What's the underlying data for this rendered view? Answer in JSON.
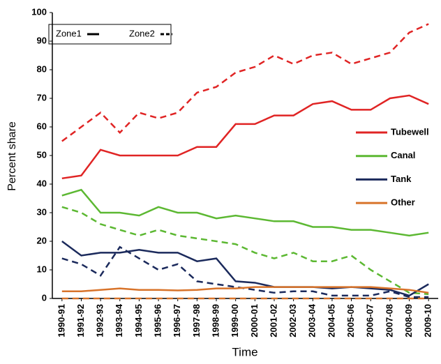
{
  "chart_data": {
    "type": "line",
    "x_label": "Time",
    "y_label": "Percent share",
    "categories": [
      "1990-91",
      "1991-92",
      "1992-93",
      "1993-94",
      "1994-95",
      "1995-96",
      "1996-97",
      "1997-98",
      "1998-99",
      "1999-00",
      "2000-01",
      "2001-02",
      "2002-03",
      "2003-04",
      "2004-05",
      "2005-06",
      "2006-07",
      "2007-08",
      "2008-09",
      "2009-10"
    ],
    "line_styles": [
      {
        "name": "Zone1",
        "key": "zone1",
        "dash": "solid"
      },
      {
        "name": "Zone2",
        "key": "zone2",
        "dash": "dashed"
      }
    ],
    "series": [
      {
        "name": "Tubewell",
        "color": "#e02424",
        "zone1": [
          42,
          43,
          52,
          50,
          50,
          50,
          50,
          53,
          53,
          61,
          61,
          64,
          64,
          68,
          69,
          66,
          66,
          70,
          71,
          68
        ],
        "zone2": [
          55,
          60,
          65,
          58,
          65,
          63,
          65,
          72,
          74,
          79,
          81,
          85,
          82,
          85,
          86,
          82,
          84,
          86,
          93,
          96
        ]
      },
      {
        "name": "Canal",
        "color": "#5cb832",
        "zone1": [
          36,
          38,
          30,
          30,
          29,
          32,
          30,
          30,
          28,
          29,
          28,
          27,
          27,
          25,
          25,
          24,
          24,
          23,
          22,
          23
        ],
        "zone2": [
          32,
          30,
          26,
          24,
          22,
          24,
          22,
          21,
          20,
          19,
          16,
          14,
          16,
          13,
          13,
          15,
          10,
          6,
          2,
          1.5
        ]
      },
      {
        "name": "Tank",
        "color": "#1b2a5c",
        "zone1": [
          20,
          15,
          16,
          16,
          17,
          16,
          16,
          13,
          14,
          6,
          5.5,
          4,
          4,
          4,
          3.5,
          4,
          3.5,
          3,
          1,
          5
        ],
        "zone2": [
          14,
          12,
          8,
          18,
          14,
          10,
          12,
          6,
          5,
          4,
          3,
          2,
          2.5,
          2.5,
          1,
          1,
          1,
          2.5,
          0.5,
          0.5
        ]
      },
      {
        "name": "Other",
        "color": "#d8732a",
        "zone1": [
          2.5,
          2.5,
          3,
          3.5,
          3,
          3,
          2.8,
          3,
          3.5,
          3.5,
          4,
          4,
          4,
          4,
          4,
          4,
          4,
          3.5,
          3,
          2
        ],
        "zone2": [
          0,
          0,
          0,
          0,
          0,
          0,
          0,
          0,
          0,
          0,
          0,
          0,
          0,
          0,
          0,
          0,
          0,
          0,
          0,
          0
        ]
      }
    ],
    "ylim": [
      0,
      100
    ],
    "yticks": [
      0,
      10,
      20,
      30,
      40,
      50,
      60,
      70,
      80,
      90,
      100
    ],
    "grid": false
  }
}
